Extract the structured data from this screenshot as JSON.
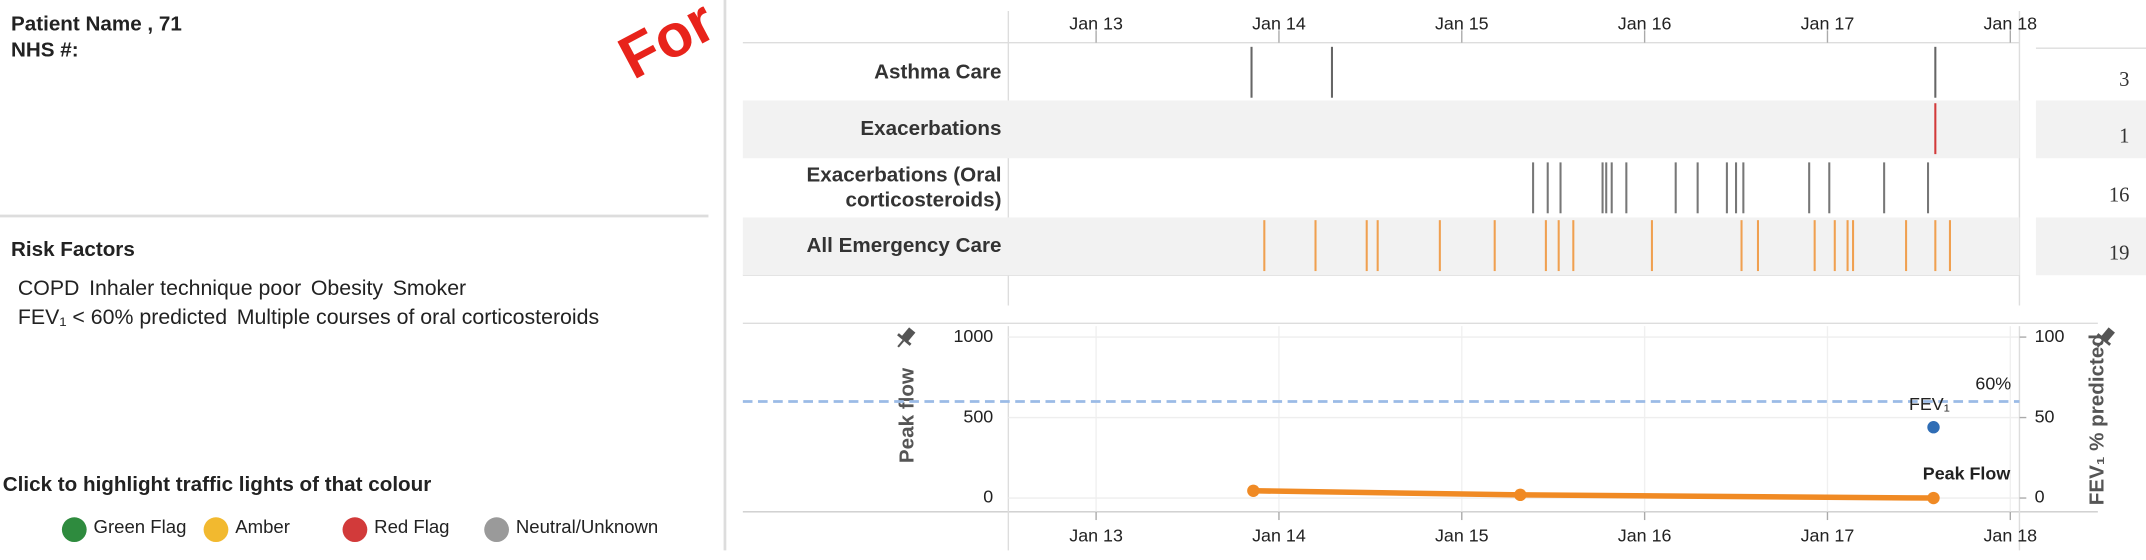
{
  "patient": {
    "name": "Patient Name , 71",
    "nhs": "NHS #:"
  },
  "watermark": "For",
  "risk_factors": {
    "title": "Risk Factors",
    "lines": [
      [
        "COPD",
        "Inhaler technique poor",
        "Obesity",
        "Smoker"
      ],
      [
        "FEV₁ < 60% predicted",
        "Multiple courses of oral corticosteroids"
      ]
    ]
  },
  "legend": {
    "title": "Click to highlight traffic lights of that colour",
    "items": [
      {
        "label": "Green Flag",
        "color": "#2e8b3e"
      },
      {
        "label": "Amber",
        "color": "#f2b92f"
      },
      {
        "label": "Red Flag",
        "color": "#d23a3a"
      },
      {
        "label": "Neutral/Unknown",
        "color": "#9a9a9a"
      }
    ]
  },
  "timeline": {
    "xlim": [
      2012.52,
      2018.05
    ],
    "xticks": [
      {
        "value": 2013,
        "label": "Jan 13"
      },
      {
        "value": 2014,
        "label": "Jan 14"
      },
      {
        "value": 2015,
        "label": "Jan 15"
      },
      {
        "value": 2016,
        "label": "Jan 16"
      },
      {
        "value": 2017,
        "label": "Jan 17"
      },
      {
        "value": 2018,
        "label": "Jan 18"
      }
    ],
    "rows": [
      {
        "name": "Asthma Care",
        "count": 3,
        "color": "#666666",
        "events": [
          2013.85,
          2014.29,
          2017.59
        ]
      },
      {
        "name": "Exacerbations",
        "count": 1,
        "color": "#d23a3a",
        "events": [
          2017.59
        ]
      },
      {
        "name": "Exacerbations (Oral corticosteroids)",
        "count": 16,
        "color": "#777777",
        "events": [
          2015.39,
          2015.47,
          2015.54,
          2015.77,
          2015.79,
          2015.82,
          2015.9,
          2016.17,
          2016.29,
          2016.45,
          2016.5,
          2016.54,
          2016.9,
          2017.01,
          2017.31,
          2017.55
        ]
      },
      {
        "name": "All Emergency Care",
        "count": 19,
        "color": "#f0a050",
        "events": [
          2013.92,
          2014.2,
          2014.48,
          2014.54,
          2014.88,
          2015.18,
          2015.46,
          2015.53,
          2015.61,
          2016.04,
          2016.53,
          2016.62,
          2016.93,
          2017.04,
          2017.11,
          2017.14,
          2017.43,
          2017.59,
          2017.67
        ]
      }
    ]
  },
  "chart_data": {
    "type": "line",
    "ylabel": "Peak flow",
    "y2label": "FEV₁ % predicted",
    "xlim": [
      2012.52,
      2018.05
    ],
    "xticks": [
      {
        "value": 2013,
        "label": "Jan 13"
      },
      {
        "value": 2014,
        "label": "Jan 14"
      },
      {
        "value": 2015,
        "label": "Jan 15"
      },
      {
        "value": 2016,
        "label": "Jan 16"
      },
      {
        "value": 2017,
        "label": "Jan 17"
      },
      {
        "value": 2018,
        "label": "Jan 18"
      }
    ],
    "ylim": [
      0,
      1000
    ],
    "yticks": [
      0,
      500,
      1000
    ],
    "y2lim": [
      0,
      100
    ],
    "y2ticks": [
      0,
      50,
      100
    ],
    "grid": true,
    "series": [
      {
        "name": "Peak Flow",
        "color": "#f08a24",
        "x": [
          2013.86,
          2015.32,
          2017.58
        ],
        "values": [
          45,
          20,
          0
        ]
      },
      {
        "name": "FEV₁",
        "color": "#2f6db5",
        "axis": "y2",
        "x": [
          2017.58
        ],
        "values": [
          44
        ]
      }
    ],
    "reference_line": {
      "value": 60,
      "label": "60%",
      "axis": "y2",
      "color": "#9bbbe6"
    }
  }
}
